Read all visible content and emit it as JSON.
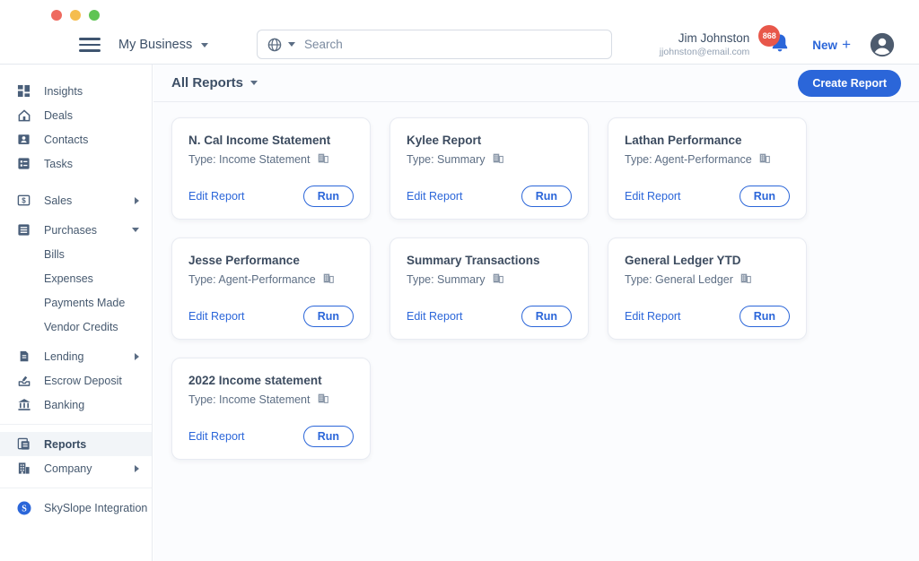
{
  "window": {
    "controls": [
      "close",
      "minimize",
      "zoom"
    ]
  },
  "topbar": {
    "business_name": "My Business",
    "search_placeholder": "Search",
    "user": {
      "name": "Jim Johnston",
      "email": "jjohnston@email.com"
    },
    "notifications_count": "868",
    "new_label": "New",
    "new_plus": "+"
  },
  "sidebar": {
    "items": [
      {
        "label": "Insights",
        "icon": "insights"
      },
      {
        "label": "Deals",
        "icon": "deals"
      },
      {
        "label": "Contacts",
        "icon": "contacts"
      },
      {
        "label": "Tasks",
        "icon": "tasks",
        "gap_after": "large"
      },
      {
        "label": "Sales",
        "icon": "sales",
        "chevron": "right",
        "gap_after": "small"
      },
      {
        "label": "Purchases",
        "icon": "purchases",
        "chevron": "down"
      },
      {
        "label": "Bills",
        "indent": true
      },
      {
        "label": "Expenses",
        "indent": true
      },
      {
        "label": "Payments Made",
        "indent": true
      },
      {
        "label": "Vendor Credits",
        "indent": true,
        "gap_after": "small"
      },
      {
        "label": "Lending",
        "icon": "lending",
        "chevron": "right"
      },
      {
        "label": "Escrow Deposit",
        "icon": "escrow"
      },
      {
        "label": "Banking",
        "icon": "banking",
        "divider_after": true
      },
      {
        "label": "Reports",
        "icon": "reports",
        "active": true
      },
      {
        "label": "Company",
        "icon": "company",
        "chevron": "right",
        "divider_after": true
      },
      {
        "label": "SkySlope Integration",
        "icon": "skyslope"
      }
    ]
  },
  "main": {
    "header": {
      "title": "All Reports",
      "create_button_label": "Create Report"
    },
    "card_actions": {
      "edit_label": "Edit Report",
      "run_label": "Run"
    },
    "type_prefix": "Type: ",
    "reports": [
      {
        "title": "N. Cal Income Statement",
        "type": "Income Statement"
      },
      {
        "title": "Kylee Report",
        "type": "Summary"
      },
      {
        "title": "Lathan Performance",
        "type": "Agent-Performance"
      },
      {
        "title": "Jesse Performance",
        "type": "Agent-Performance"
      },
      {
        "title": "Summary Transactions",
        "type": "Summary"
      },
      {
        "title": "General Ledger YTD",
        "type": "General Ledger"
      },
      {
        "title": "2022 Income statement",
        "type": "Income Statement"
      }
    ]
  },
  "colors": {
    "accent": "#2b66d9",
    "badge_red": "#e8574a",
    "traffic_red": "#ee6a5f",
    "traffic_yellow": "#f5bd4f",
    "traffic_green": "#5fc454"
  }
}
